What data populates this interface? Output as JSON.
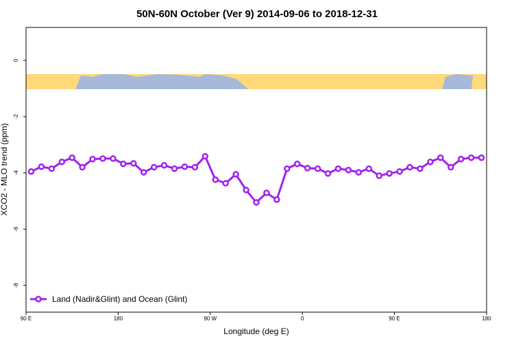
{
  "chart_data": {
    "type": "line",
    "title": "50N-60N October (Ver 9)   2014-09-06 to 2018-12-31",
    "x_label": "Longitude (deg E)",
    "y_label": "XCO2 - MLO trend (ppm)",
    "xlim": [
      90,
      540
    ],
    "ylim": [
      -8.95,
      1.17
    ],
    "xticks": [
      {
        "value": 90,
        "label": "90 E"
      },
      180,
      {
        "value": 270,
        "label": "90 W"
      },
      {
        "value": 360,
        "label": "0"
      },
      {
        "value": 450,
        "label": "90 E"
      },
      {
        "value": 540,
        "label": "180"
      }
    ],
    "yticks": [
      0,
      -2,
      -4,
      -6,
      -8
    ],
    "legend_loc": "lower left",
    "x": [
      95,
      105,
      115,
      125,
      135,
      145,
      155,
      165,
      175,
      185,
      195,
      205,
      215,
      225,
      235,
      245,
      255,
      265,
      275,
      285,
      295,
      305,
      315,
      325,
      335,
      345,
      355,
      365,
      375,
      385,
      395,
      405,
      415,
      425,
      435,
      445,
      455,
      465,
      475,
      485,
      495,
      505,
      515,
      525,
      535
    ],
    "series": [
      {
        "name": "Land (Nadir&Glint) and Ocean (Glint)",
        "color": "#a020f0",
        "values": [
          -3.95,
          -3.78,
          -3.85,
          -3.61,
          -3.46,
          -3.8,
          -3.51,
          -3.49,
          -3.49,
          -3.68,
          -3.66,
          -3.98,
          -3.8,
          -3.73,
          -3.85,
          -3.78,
          -3.8,
          -3.41,
          -4.24,
          -4.37,
          -4.05,
          -4.61,
          -5.05,
          -4.71,
          -4.95,
          -3.85,
          -3.68,
          -3.83,
          -3.85,
          -4.02,
          -3.85,
          -3.9,
          -3.98,
          -3.85,
          -4.1,
          -4.02,
          -3.95,
          -3.8,
          -3.85,
          -3.61,
          -3.46,
          -3.8,
          -3.51,
          -3.46,
          -3.46
        ]
      }
    ]
  }
}
